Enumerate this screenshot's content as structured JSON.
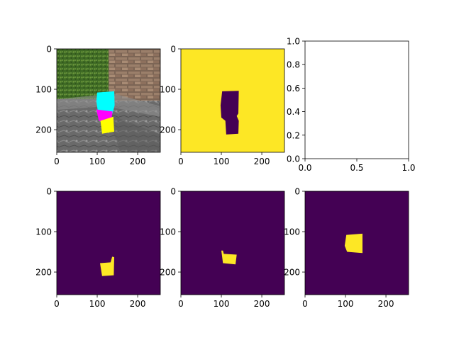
{
  "colors": {
    "viridis_low": "#440154",
    "viridis_high": "#fde725",
    "grass": "#4c7a2e",
    "brick": "#8a6e5a",
    "rock": "#6f6f6f",
    "mask_cyan": "#00ffff",
    "mask_magenta": "#ff00ff",
    "mask_yellow": "#ffff00"
  },
  "chart_data": [
    {
      "type": "heatmap",
      "panel": "scene-rgb-with-overlay",
      "x_ticks": [
        "0",
        "100",
        "200"
      ],
      "y_ticks": [
        "0",
        "100",
        "200"
      ],
      "xlim": [
        0,
        256
      ],
      "ylim": [
        256,
        0
      ],
      "regions": [
        {
          "label": "cyan",
          "color_key": "mask_cyan",
          "points": [
            [
              100,
              108
            ],
            [
              142,
              105
            ],
            [
              143,
              140
            ],
            [
              138,
              160
            ],
            [
              102,
              158
            ],
            [
              98,
              130
            ]
          ]
        },
        {
          "label": "magenta",
          "color_key": "mask_magenta",
          "points": [
            [
              98,
              150
            ],
            [
              138,
              155
            ],
            [
              134,
              182
            ],
            [
              104,
              178
            ]
          ]
        },
        {
          "label": "yellow",
          "color_key": "mask_yellow",
          "points": [
            [
              108,
              178
            ],
            [
              140,
              168
            ],
            [
              142,
              205
            ],
            [
              112,
              210
            ]
          ]
        }
      ]
    },
    {
      "type": "heatmap",
      "panel": "mask-complement",
      "x_ticks": [
        "0",
        "100",
        "200"
      ],
      "y_ticks": [
        "0",
        "100",
        "200"
      ],
      "xlim": [
        0,
        256
      ],
      "ylim": [
        256,
        0
      ],
      "background": "high",
      "region": [
        [
          102,
          105
        ],
        [
          143,
          104
        ],
        [
          142,
          160
        ],
        [
          138,
          166
        ],
        [
          143,
          178
        ],
        [
          142,
          210
        ],
        [
          112,
          212
        ],
        [
          110,
          178
        ],
        [
          100,
          170
        ],
        [
          98,
          140
        ]
      ]
    },
    {
      "type": "empty",
      "panel": "empty-axes",
      "x_ticks": [
        "0.0",
        "0.5",
        "1.0"
      ],
      "y_ticks": [
        "0.0",
        "0.2",
        "0.4",
        "0.6",
        "0.8",
        "1.0"
      ],
      "xlim": [
        0,
        1
      ],
      "ylim": [
        0,
        1
      ]
    },
    {
      "type": "heatmap",
      "panel": "mask-yellow",
      "x_ticks": [
        "0",
        "100",
        "200"
      ],
      "y_ticks": [
        "0",
        "100",
        "200"
      ],
      "xlim": [
        0,
        256
      ],
      "ylim": [
        256,
        0
      ],
      "background": "low",
      "region": [
        [
          107,
          178
        ],
        [
          133,
          176
        ],
        [
          137,
          162
        ],
        [
          142,
          163
        ],
        [
          141,
          208
        ],
        [
          112,
          210
        ]
      ]
    },
    {
      "type": "heatmap",
      "panel": "mask-magenta",
      "x_ticks": [
        "0",
        "100",
        "200"
      ],
      "y_ticks": [
        "0",
        "100",
        "200"
      ],
      "xlim": [
        0,
        256
      ],
      "ylim": [
        256,
        0
      ],
      "background": "low",
      "region": [
        [
          100,
          147
        ],
        [
          104,
          147
        ],
        [
          106,
          155
        ],
        [
          138,
          157
        ],
        [
          135,
          181
        ],
        [
          104,
          178
        ]
      ]
    },
    {
      "type": "heatmap",
      "panel": "mask-cyan",
      "x_ticks": [
        "0",
        "100",
        "200"
      ],
      "y_ticks": [
        "0",
        "100",
        "200"
      ],
      "xlim": [
        0,
        256
      ],
      "ylim": [
        256,
        0
      ],
      "background": "low",
      "region": [
        [
          102,
          108
        ],
        [
          142,
          105
        ],
        [
          142,
          153
        ],
        [
          104,
          150
        ],
        [
          98,
          135
        ]
      ]
    }
  ]
}
